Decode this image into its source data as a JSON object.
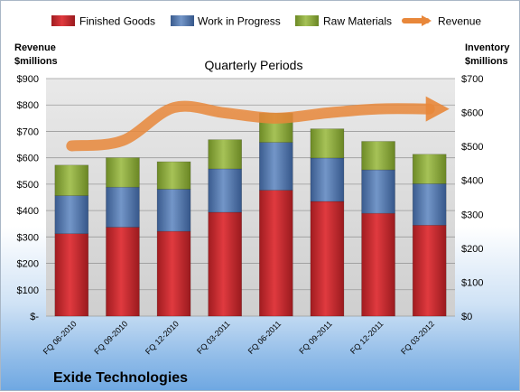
{
  "chart_data": {
    "type": "bar",
    "stacked": true,
    "title": "Quarterly Periods",
    "left_axis_label": [
      "Revenue",
      "$millions"
    ],
    "right_axis_label": [
      "Inventory",
      "$millions"
    ],
    "left_ylim": [
      0,
      900
    ],
    "right_ylim": [
      0,
      700
    ],
    "left_ticks": [
      "$-",
      "$100",
      "$200",
      "$300",
      "$400",
      "$500",
      "$600",
      "$700",
      "$800",
      "$900"
    ],
    "right_ticks": [
      "$0",
      "$100",
      "$200",
      "$300",
      "$400",
      "$500",
      "$600",
      "$700"
    ],
    "categories": [
      "FQ 06-2010",
      "FQ 09-2010",
      "FQ 12-2010",
      "FQ 03-2011",
      "FQ 06-2011",
      "FQ 09-2011",
      "FQ 12-2011",
      "FQ 03-2012"
    ],
    "series": [
      {
        "name": "Finished Goods",
        "axis": "right",
        "color": "#c0282d",
        "values": [
          243,
          262,
          250,
          306,
          371,
          338,
          303,
          268
        ]
      },
      {
        "name": "Work in Progress",
        "axis": "right",
        "color": "#4a6fa5",
        "values": [
          112,
          118,
          124,
          128,
          141,
          128,
          128,
          122
        ]
      },
      {
        "name": "Raw Materials",
        "axis": "right",
        "color": "#8caa3a",
        "values": [
          90,
          87,
          81,
          86,
          86,
          86,
          84,
          87
        ]
      },
      {
        "name": "Revenue",
        "axis": "left",
        "type": "line",
        "color": "#e8873a",
        "values": [
          645,
          665,
          790,
          770,
          750,
          770,
          785,
          785
        ]
      }
    ],
    "grid": true,
    "legend_position": "top"
  },
  "footer": {
    "company": "Exide Technologies"
  }
}
